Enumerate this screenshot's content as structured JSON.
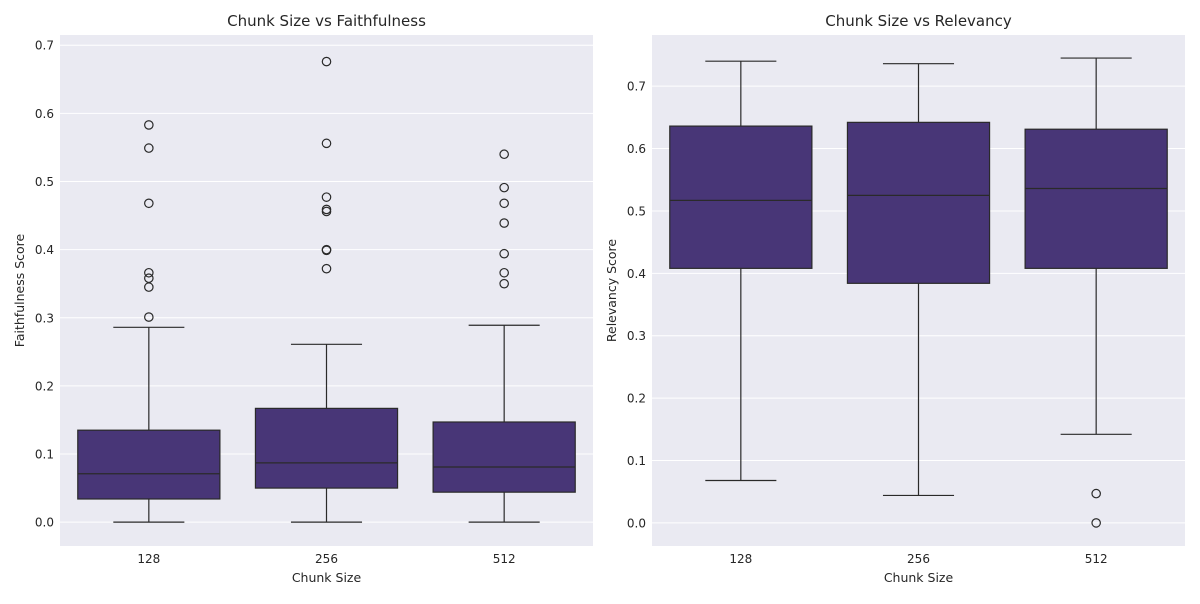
{
  "colors": {
    "panel_bg": "#eaeaf2",
    "grid": "#ffffff",
    "box_fill": "#483677",
    "line": "#2a2a2a",
    "text": "#262626"
  },
  "chart_data": [
    {
      "type": "box",
      "title": "Chunk Size vs Faithfulness",
      "xlabel": "Chunk Size",
      "ylabel": "Faithfulness Score",
      "categories": [
        "128",
        "256",
        "512"
      ],
      "ylim": [
        -0.035,
        0.715
      ],
      "yticks": [
        0.0,
        0.1,
        0.2,
        0.3,
        0.4,
        0.5,
        0.6,
        0.7
      ],
      "ytick_labels": [
        "0.0",
        "0.1",
        "0.2",
        "0.3",
        "0.4",
        "0.5",
        "0.6",
        "0.7"
      ],
      "grid": true,
      "boxes": [
        {
          "category": "128",
          "whisker_low": 0.0,
          "q1": 0.034,
          "median": 0.071,
          "q3": 0.135,
          "whisker_high": 0.286,
          "outliers": [
            0.583,
            0.549,
            0.468,
            0.366,
            0.358,
            0.345,
            0.301
          ]
        },
        {
          "category": "256",
          "whisker_low": 0.0,
          "q1": 0.05,
          "median": 0.087,
          "q3": 0.167,
          "whisker_high": 0.261,
          "outliers": [
            0.676,
            0.556,
            0.477,
            0.459,
            0.456,
            0.4,
            0.399,
            0.372
          ]
        },
        {
          "category": "512",
          "whisker_low": 0.0,
          "q1": 0.044,
          "median": 0.081,
          "q3": 0.147,
          "whisker_high": 0.289,
          "outliers": [
            0.54,
            0.491,
            0.468,
            0.439,
            0.394,
            0.366,
            0.35
          ]
        }
      ]
    },
    {
      "type": "box",
      "title": "Chunk Size vs Relevancy",
      "xlabel": "Chunk Size",
      "ylabel": "Relevancy Score",
      "categories": [
        "128",
        "256",
        "512"
      ],
      "ylim": [
        -0.037,
        0.782
      ],
      "yticks": [
        0.0,
        0.1,
        0.2,
        0.3,
        0.4,
        0.5,
        0.6,
        0.7
      ],
      "ytick_labels": [
        "0.0",
        "0.1",
        "0.2",
        "0.3",
        "0.4",
        "0.5",
        "0.6",
        "0.7"
      ],
      "grid": true,
      "boxes": [
        {
          "category": "128",
          "whisker_low": 0.068,
          "q1": 0.408,
          "median": 0.517,
          "q3": 0.636,
          "whisker_high": 0.74,
          "outliers": []
        },
        {
          "category": "256",
          "whisker_low": 0.044,
          "q1": 0.384,
          "median": 0.525,
          "q3": 0.642,
          "whisker_high": 0.736,
          "outliers": []
        },
        {
          "category": "512",
          "whisker_low": 0.142,
          "q1": 0.408,
          "median": 0.536,
          "q3": 0.631,
          "whisker_high": 0.745,
          "outliers": [
            0.047,
            0.0
          ]
        }
      ]
    }
  ]
}
